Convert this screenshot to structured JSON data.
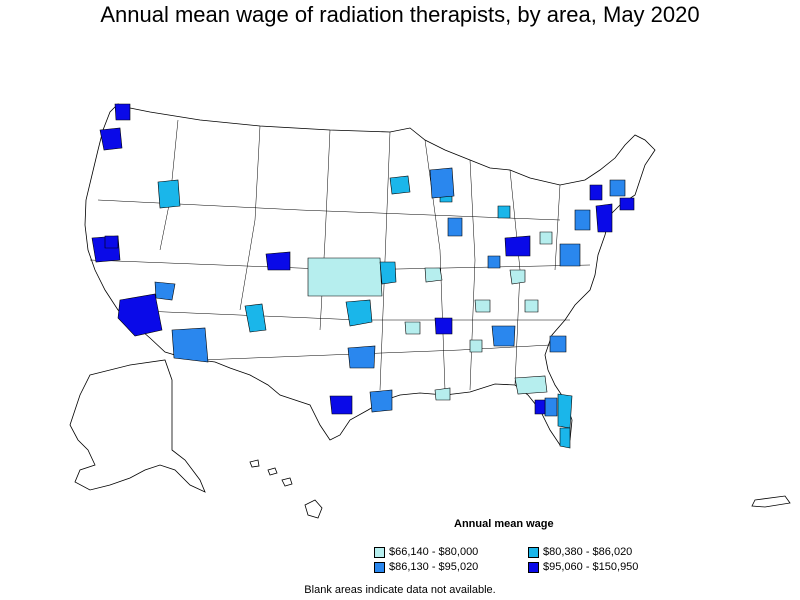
{
  "title": "Annual mean wage of radiation therapists, by area, May 2020",
  "legend": {
    "title": "Annual mean wage",
    "items": [
      {
        "label": "$66,140 - $80,000",
        "color": "#b6eeee"
      },
      {
        "label": "$80,380 - $86,020",
        "color": "#1ab6ea"
      },
      {
        "label": "$86,130 - $95,020",
        "color": "#2a87ee"
      },
      {
        "label": "$95,060 - $150,950",
        "color": "#0a0ae8"
      }
    ]
  },
  "note": "Blank areas indicate data not available."
}
